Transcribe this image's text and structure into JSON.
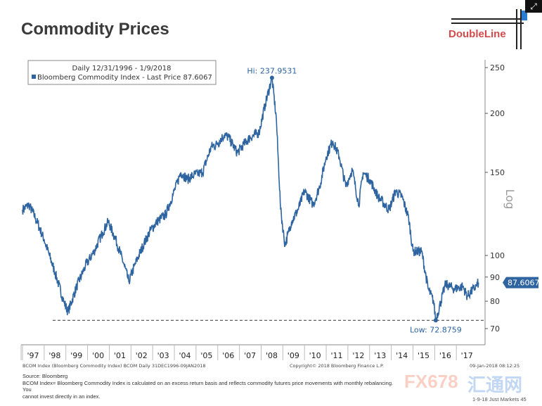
{
  "title": "Commodity Prices",
  "logo": "DoubleLine",
  "chart_data": {
    "type": "line",
    "legend": {
      "line1": "Daily 12/31/1996 - 1/9/2018",
      "line2": "Bloomberg Commodity Index - Last Price 87.6067",
      "placement": "top-left"
    },
    "series_color": "#2e64a0",
    "y_scale": "log",
    "y_label": "Log",
    "ylim": [
      68,
      262
    ],
    "y_ticks": [
      70,
      80,
      90,
      100,
      150,
      200,
      250
    ],
    "x_ticks": [
      "'97",
      "'98",
      "'99",
      "'00",
      "'01",
      "'02",
      "'03",
      "'04",
      "'05",
      "'06",
      "'07",
      "'08",
      "'09",
      "'10",
      "'11",
      "'12",
      "'13",
      "'14",
      "'15",
      "'16",
      "'17"
    ],
    "xlim": [
      1997.0,
      2018.1
    ],
    "annotations": {
      "high": "Hi: 237.9531",
      "high_value": 237.9531,
      "low": "Low: 72.8759",
      "low_value": 72.8759,
      "last": "87.6067",
      "last_value": 87.6067
    },
    "points": [
      [
        1997.0,
        125
      ],
      [
        1997.3,
        128
      ],
      [
        1997.6,
        120
      ],
      [
        1998.0,
        108
      ],
      [
        1998.5,
        92
      ],
      [
        1998.9,
        80
      ],
      [
        1999.1,
        76
      ],
      [
        1999.5,
        86
      ],
      [
        1999.9,
        95
      ],
      [
        2000.3,
        102
      ],
      [
        2000.7,
        112
      ],
      [
        2000.95,
        118
      ],
      [
        2001.3,
        108
      ],
      [
        2001.7,
        95
      ],
      [
        2001.9,
        88
      ],
      [
        2002.2,
        96
      ],
      [
        2002.6,
        106
      ],
      [
        2002.9,
        113
      ],
      [
        2003.2,
        118
      ],
      [
        2003.6,
        122
      ],
      [
        2003.95,
        135
      ],
      [
        2004.3,
        150
      ],
      [
        2004.6,
        145
      ],
      [
        2004.9,
        148
      ],
      [
        2005.3,
        150
      ],
      [
        2005.7,
        170
      ],
      [
        2005.95,
        172
      ],
      [
        2006.3,
        180
      ],
      [
        2006.5,
        178
      ],
      [
        2006.9,
        165
      ],
      [
        2007.2,
        172
      ],
      [
        2007.5,
        178
      ],
      [
        2007.9,
        182
      ],
      [
        2008.2,
        210
      ],
      [
        2008.5,
        237.95
      ],
      [
        2008.7,
        195
      ],
      [
        2008.9,
        125
      ],
      [
        2009.1,
        105
      ],
      [
        2009.4,
        118
      ],
      [
        2009.7,
        125
      ],
      [
        2010.0,
        137
      ],
      [
        2010.4,
        128
      ],
      [
        2010.7,
        140
      ],
      [
        2011.0,
        162
      ],
      [
        2011.3,
        175
      ],
      [
        2011.6,
        162
      ],
      [
        2011.9,
        140
      ],
      [
        2012.2,
        152
      ],
      [
        2012.5,
        128
      ],
      [
        2012.7,
        150
      ],
      [
        2013.0,
        145
      ],
      [
        2013.4,
        133
      ],
      [
        2013.9,
        125
      ],
      [
        2014.2,
        137
      ],
      [
        2014.5,
        133
      ],
      [
        2014.8,
        120
      ],
      [
        2015.0,
        102
      ],
      [
        2015.4,
        102
      ],
      [
        2015.7,
        85
      ],
      [
        2015.95,
        80
      ],
      [
        2016.05,
        72.88
      ],
      [
        2016.5,
        87
      ],
      [
        2016.9,
        85
      ],
      [
        2017.3,
        86
      ],
      [
        2017.5,
        82
      ],
      [
        2017.9,
        86
      ],
      [
        2018.02,
        87.61
      ]
    ]
  },
  "footer": {
    "left": "BCOM Index (Bloomberg Commodity Index) BCOM   Daily 31DEC1996-09JAN2018",
    "center": "Copyright© 2018 Bloomberg Finance L.P.",
    "right": "09-Jan-2018 08:12:25",
    "source": "Source: Bloomberg",
    "note1": "BCOM Index= Bloomberg Commodity Index is calculated on an excess return basis and reflects commodity futures price movements with monthly rebalancing. You",
    "note2": "cannot invest directly in an index.",
    "page": "1-9-18 Just Markets   45",
    "watermark": "FX678",
    "watermark2": "汇通网"
  }
}
